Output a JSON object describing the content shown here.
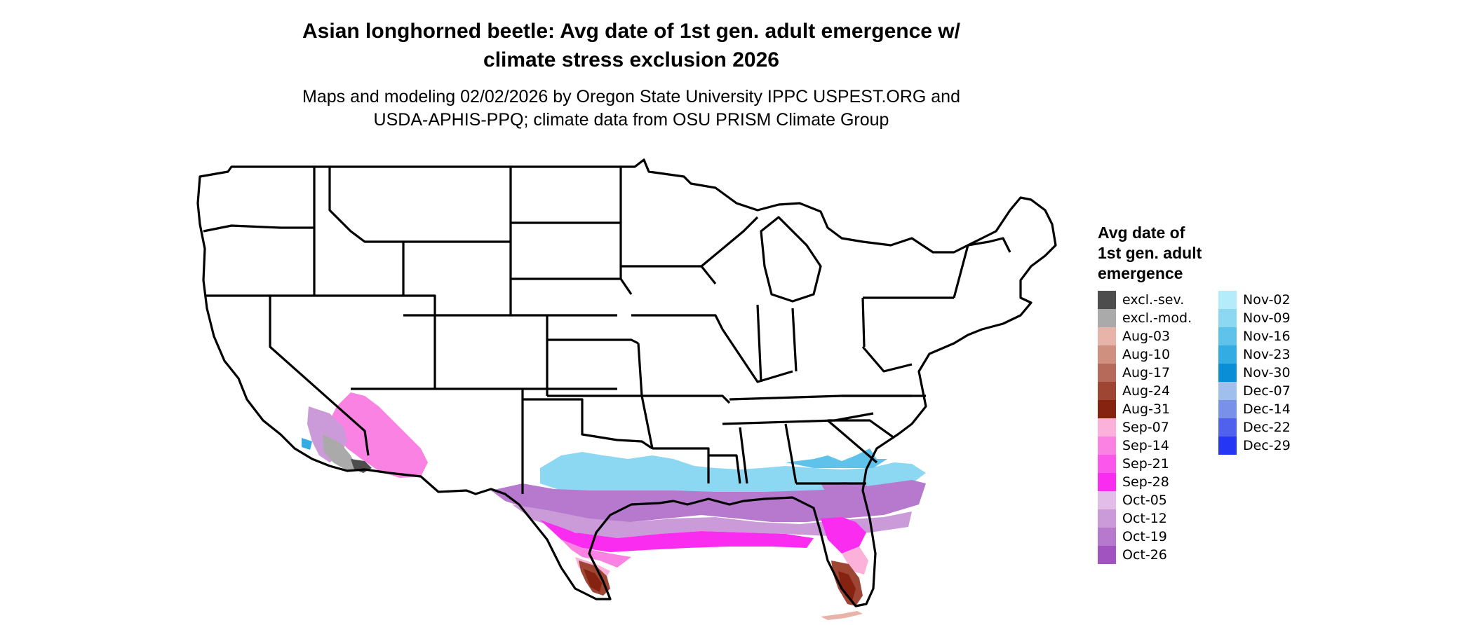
{
  "title_line1": "Asian longhorned beetle: Avg date of 1st gen. adult emergence w/",
  "title_line2": "climate stress exclusion 2026",
  "subtitle_line1": "Maps and modeling 02/02/2026 by Oregon State University IPPC USPEST.ORG and",
  "subtitle_line2": "USDA-APHIS-PPQ; climate data from OSU PRISM Climate Group",
  "legend": {
    "title_line1": "Avg date of",
    "title_line2": "1st gen. adult",
    "title_line3": "emergence",
    "col1": [
      {
        "label": "excl.-sev.",
        "color": "#4d4d4d"
      },
      {
        "label": "excl.-mod.",
        "color": "#aaaaaa"
      },
      {
        "label": "Aug-03",
        "color": "#e8b4aa"
      },
      {
        "label": "Aug-10",
        "color": "#cf9080"
      },
      {
        "label": "Aug-17",
        "color": "#b56a5a"
      },
      {
        "label": "Aug-24",
        "color": "#9e4534"
      },
      {
        "label": "Aug-31",
        "color": "#862210"
      },
      {
        "label": "Sep-07",
        "color": "#fbb1d9"
      },
      {
        "label": "Sep-14",
        "color": "#fa82e3"
      },
      {
        "label": "Sep-21",
        "color": "#fb57ea"
      },
      {
        "label": "Sep-28",
        "color": "#fa2cf0"
      },
      {
        "label": "Oct-05",
        "color": "#e2bde8"
      },
      {
        "label": "Oct-12",
        "color": "#cb9ad9"
      },
      {
        "label": "Oct-19",
        "color": "#b679cd"
      },
      {
        "label": "Oct-26",
        "color": "#a153c0"
      }
    ],
    "col2": [
      {
        "label": "Nov-02",
        "color": "#b5ecfb"
      },
      {
        "label": "Nov-09",
        "color": "#8cd7f2"
      },
      {
        "label": "Nov-16",
        "color": "#5ec2eb"
      },
      {
        "label": "Nov-23",
        "color": "#33ace3"
      },
      {
        "label": "Nov-30",
        "color": "#0a8fd6"
      },
      {
        "label": "Dec-07",
        "color": "#a0bfec"
      },
      {
        "label": "Dec-14",
        "color": "#7a91ea"
      },
      {
        "label": "Dec-22",
        "color": "#5061ee"
      },
      {
        "label": "Dec-29",
        "color": "#2536f4"
      }
    ]
  }
}
